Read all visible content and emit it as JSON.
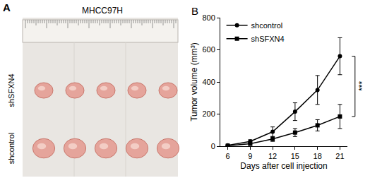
{
  "photo_panel": {
    "label": "A",
    "title": "MHCC97H",
    "groups": [
      "shSFXN4",
      "shcontrol"
    ],
    "tumors_per_group": 5
  },
  "chart_data": {
    "type": "line",
    "panel_label": "B",
    "x_label": "Days after cell injection",
    "y_label": "Tumor volume (mm³)",
    "x": [
      6,
      9,
      12,
      15,
      18,
      21
    ],
    "series": [
      {
        "name": "shcontrol",
        "color": "#000000",
        "marker": "circle",
        "values": [
          5,
          30,
          90,
          215,
          350,
          560
        ],
        "errors": [
          3,
          10,
          30,
          55,
          90,
          115
        ]
      },
      {
        "name": "shSFXN4",
        "color": "#000000",
        "marker": "square",
        "values": [
          3,
          15,
          45,
          85,
          130,
          185
        ],
        "errors": [
          2,
          6,
          15,
          25,
          35,
          75
        ]
      }
    ],
    "xlim": [
      5,
      22
    ],
    "xticks": [
      6,
      9,
      12,
      15,
      18,
      21
    ],
    "ylim": [
      0,
      800
    ],
    "yticks": [
      0,
      200,
      400,
      600,
      800
    ],
    "grid": false,
    "legend": "upper left",
    "annotations": [
      {
        "text": "***",
        "x": 21
      }
    ]
  }
}
